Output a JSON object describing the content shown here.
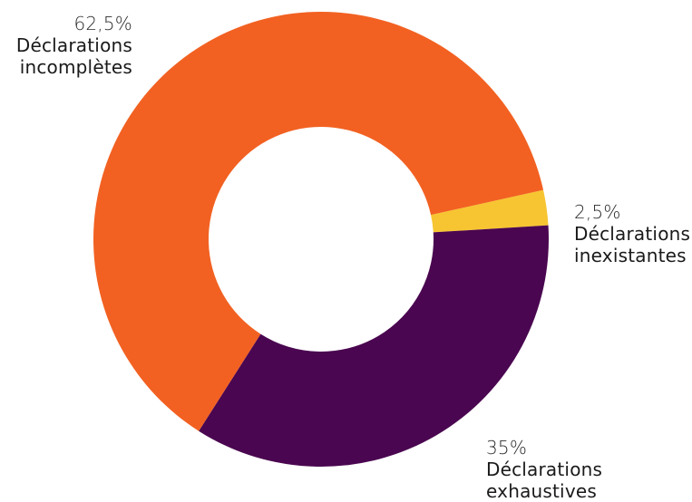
{
  "chart_data": {
    "type": "pie",
    "variant": "donut",
    "title": "",
    "slices": [
      {
        "name": "Déclarations incomplètes",
        "name_lines": [
          "Déclarations",
          "incomplètes"
        ],
        "value": 62.5,
        "value_label": "62,5%",
        "color": "#f26122"
      },
      {
        "name": "Déclarations inexistantes",
        "name_lines": [
          "Déclarations",
          "inexistantes"
        ],
        "value": 2.5,
        "value_label": "2,5%",
        "color": "#f7c531"
      },
      {
        "name": "Déclarations exhaustives",
        "name_lines": [
          "Déclarations",
          "exhaustives"
        ],
        "value": 35,
        "value_label": "35%",
        "color": "#4a0650"
      }
    ]
  }
}
